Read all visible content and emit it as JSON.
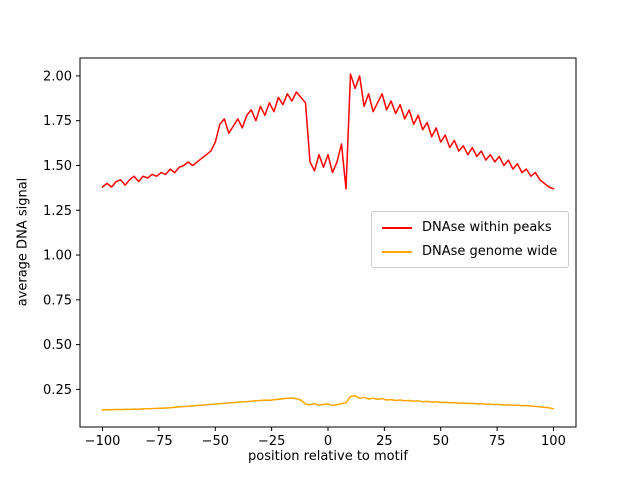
{
  "chart_data": {
    "type": "line",
    "title": "",
    "xlabel": "position relative to motif",
    "ylabel": "average DNA signal",
    "xlim": [
      -110,
      110
    ],
    "ylim": [
      0.04,
      2.1
    ],
    "grid": false,
    "xticks": {
      "values": [
        -100,
        -75,
        -50,
        -25,
        0,
        25,
        50,
        75,
        100
      ],
      "labels": [
        "−100",
        "−75",
        "−50",
        "−25",
        "0",
        "25",
        "50",
        "75",
        "100"
      ]
    },
    "yticks": {
      "values": [
        0.25,
        0.5,
        0.75,
        1.0,
        1.25,
        1.5,
        1.75,
        2.0
      ],
      "labels": [
        "0.25",
        "0.50",
        "0.75",
        "1.00",
        "1.25",
        "1.50",
        "1.75",
        "2.00"
      ]
    },
    "legend": {
      "location": "center right",
      "frame": true,
      "entries": [
        "DNAse within peaks",
        "DNAse genome wide"
      ]
    },
    "x": [
      -100,
      -98,
      -96,
      -94,
      -92,
      -90,
      -88,
      -86,
      -84,
      -82,
      -80,
      -78,
      -76,
      -74,
      -72,
      -70,
      -68,
      -66,
      -64,
      -62,
      -60,
      -58,
      -56,
      -54,
      -52,
      -50,
      -48,
      -46,
      -44,
      -42,
      -40,
      -38,
      -36,
      -34,
      -32,
      -30,
      -28,
      -26,
      -24,
      -22,
      -20,
      -18,
      -16,
      -14,
      -12,
      -10,
      -8,
      -6,
      -4,
      -2,
      0,
      2,
      4,
      6,
      8,
      10,
      12,
      14,
      16,
      18,
      20,
      22,
      24,
      26,
      28,
      30,
      32,
      34,
      36,
      38,
      40,
      42,
      44,
      46,
      48,
      50,
      52,
      54,
      56,
      58,
      60,
      62,
      64,
      66,
      68,
      70,
      72,
      74,
      76,
      78,
      80,
      82,
      84,
      86,
      88,
      90,
      92,
      94,
      96,
      98,
      100
    ],
    "series": [
      {
        "name": "DNAse within peaks",
        "color": "#ff0000",
        "values": [
          1.38,
          1.4,
          1.38,
          1.41,
          1.42,
          1.39,
          1.42,
          1.44,
          1.41,
          1.44,
          1.43,
          1.45,
          1.44,
          1.46,
          1.45,
          1.48,
          1.46,
          1.49,
          1.5,
          1.52,
          1.5,
          1.52,
          1.54,
          1.56,
          1.58,
          1.63,
          1.73,
          1.76,
          1.68,
          1.72,
          1.76,
          1.71,
          1.78,
          1.81,
          1.75,
          1.83,
          1.78,
          1.85,
          1.8,
          1.88,
          1.84,
          1.9,
          1.86,
          1.91,
          1.88,
          1.85,
          1.52,
          1.47,
          1.56,
          1.49,
          1.56,
          1.46,
          1.52,
          1.62,
          1.37,
          2.01,
          1.93,
          2.0,
          1.83,
          1.9,
          1.8,
          1.85,
          1.9,
          1.81,
          1.86,
          1.79,
          1.84,
          1.76,
          1.81,
          1.73,
          1.78,
          1.7,
          1.74,
          1.66,
          1.71,
          1.63,
          1.67,
          1.6,
          1.64,
          1.58,
          1.61,
          1.56,
          1.6,
          1.55,
          1.58,
          1.53,
          1.56,
          1.52,
          1.55,
          1.5,
          1.53,
          1.48,
          1.51,
          1.46,
          1.48,
          1.44,
          1.46,
          1.42,
          1.4,
          1.38,
          1.37
        ]
      },
      {
        "name": "DNAse genome wide",
        "color": "#ffa500",
        "values": [
          0.135,
          0.137,
          0.136,
          0.138,
          0.137,
          0.139,
          0.138,
          0.14,
          0.139,
          0.141,
          0.142,
          0.143,
          0.144,
          0.145,
          0.146,
          0.148,
          0.15,
          0.152,
          0.154,
          0.156,
          0.158,
          0.16,
          0.162,
          0.164,
          0.166,
          0.168,
          0.17,
          0.172,
          0.174,
          0.176,
          0.178,
          0.18,
          0.182,
          0.184,
          0.186,
          0.188,
          0.19,
          0.189,
          0.192,
          0.195,
          0.198,
          0.2,
          0.202,
          0.198,
          0.19,
          0.168,
          0.165,
          0.17,
          0.162,
          0.166,
          0.168,
          0.16,
          0.165,
          0.17,
          0.175,
          0.21,
          0.215,
          0.2,
          0.206,
          0.196,
          0.201,
          0.194,
          0.199,
          0.191,
          0.193,
          0.188,
          0.191,
          0.186,
          0.188,
          0.184,
          0.186,
          0.181,
          0.183,
          0.179,
          0.181,
          0.177,
          0.178,
          0.175,
          0.176,
          0.173,
          0.174,
          0.171,
          0.172,
          0.169,
          0.17,
          0.167,
          0.168,
          0.165,
          0.166,
          0.163,
          0.164,
          0.161,
          0.162,
          0.159,
          0.16,
          0.157,
          0.155,
          0.152,
          0.15,
          0.147,
          0.142
        ]
      }
    ]
  }
}
